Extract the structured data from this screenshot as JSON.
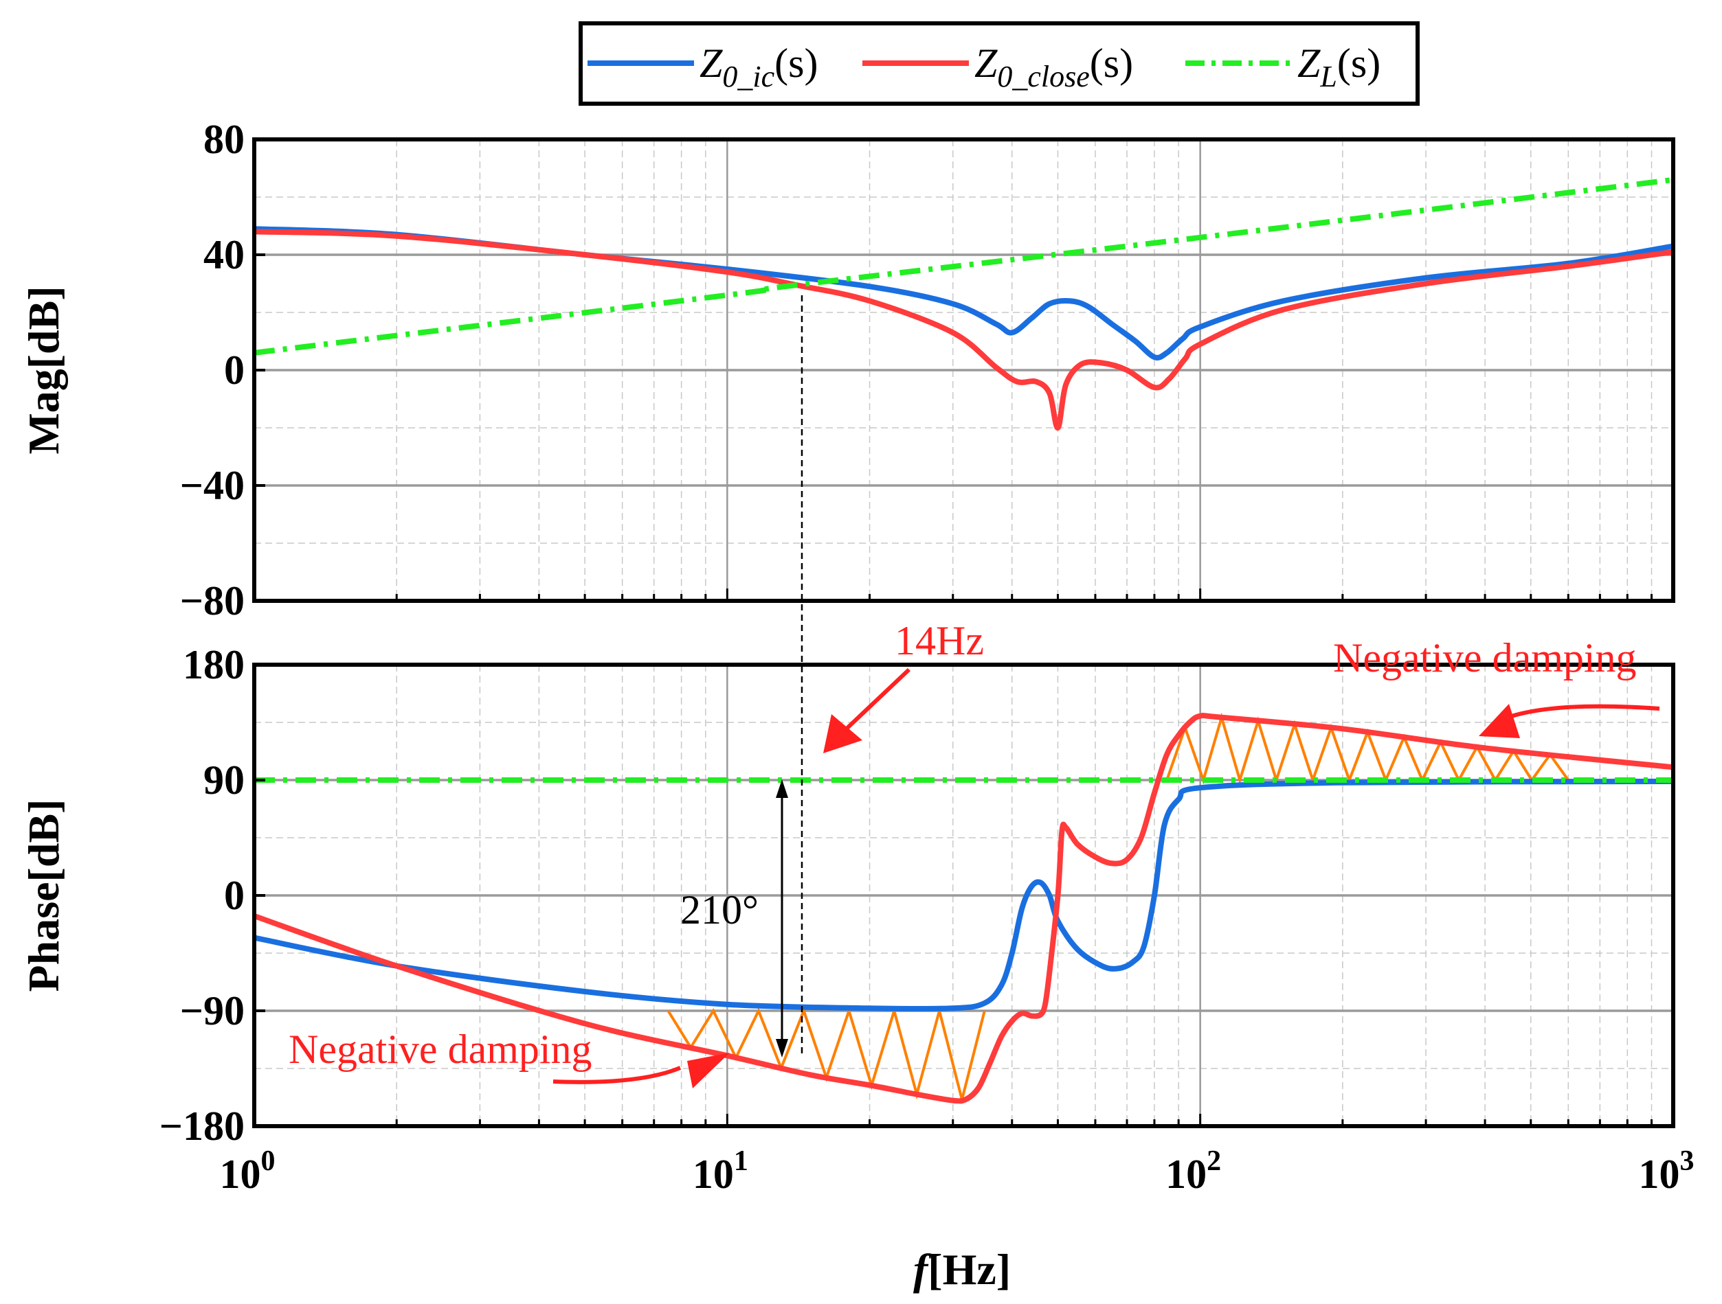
{
  "chart_data": [
    {
      "type": "line",
      "panel": "magnitude",
      "ylabel": "Mag[dB]",
      "xscale": "log",
      "xlim": [
        1,
        1000
      ],
      "ylim": [
        -80,
        80
      ],
      "yticks": [
        80,
        40,
        0,
        -40,
        -80
      ],
      "ytick_labels": [
        "80",
        "40",
        "0",
        "−40",
        "−80"
      ],
      "grid": true,
      "series": [
        {
          "name": "Z0_ic(s)",
          "color": "#1a6fe0",
          "points": [
            [
              1,
              49
            ],
            [
              2,
              47
            ],
            [
              5,
              40
            ],
            [
              10,
              35
            ],
            [
              20,
              29
            ],
            [
              30,
              23
            ],
            [
              37,
              16
            ],
            [
              40,
              13
            ],
            [
              44,
              18
            ],
            [
              48,
              23
            ],
            [
              53,
              24
            ],
            [
              58,
              22
            ],
            [
              65,
              16
            ],
            [
              73,
              10
            ],
            [
              80,
              4.5
            ],
            [
              85,
              6
            ],
            [
              92,
              11
            ],
            [
              100,
              15
            ],
            [
              150,
              24
            ],
            [
              300,
              32
            ],
            [
              600,
              37
            ],
            [
              1000,
              43
            ]
          ]
        },
        {
          "name": "Z0_close(s)",
          "color": "#ff3b3b",
          "points": [
            [
              1,
              48
            ],
            [
              2,
              46.5
            ],
            [
              5,
              40
            ],
            [
              10,
              34
            ],
            [
              14,
              29.5
            ],
            [
              20,
              24
            ],
            [
              30,
              13
            ],
            [
              37,
              1
            ],
            [
              41,
              -4
            ],
            [
              45,
              -4
            ],
            [
              48,
              -8
            ],
            [
              50,
              -20
            ],
            [
              52,
              -5
            ],
            [
              56,
              2
            ],
            [
              62,
              2.5
            ],
            [
              70,
              0
            ],
            [
              80,
              -6
            ],
            [
              86,
              -3
            ],
            [
              93,
              4
            ],
            [
              100,
              9
            ],
            [
              150,
              21
            ],
            [
              300,
              30
            ],
            [
              600,
              36
            ],
            [
              1000,
              41
            ]
          ]
        },
        {
          "name": "ZL(s)",
          "color": "#22ee22",
          "dash": "dashdot",
          "points": [
            [
              1,
              6
            ],
            [
              10,
              26
            ],
            [
              14,
              29.5
            ],
            [
              100,
              46
            ],
            [
              1000,
              66
            ]
          ]
        }
      ]
    },
    {
      "type": "line",
      "panel": "phase",
      "ylabel": "Phase[dB]",
      "xlabel": "f[Hz]",
      "xscale": "log",
      "xlim": [
        1,
        1000
      ],
      "ylim": [
        -180,
        180
      ],
      "yticks": [
        180,
        90,
        0,
        -90,
        -180
      ],
      "ytick_labels": [
        "180",
        "90",
        "0",
        "−90",
        "−180"
      ],
      "grid": true,
      "series": [
        {
          "name": "Z0_ic(s)",
          "color": "#1a6fe0",
          "points": [
            [
              1,
              -33
            ],
            [
              2,
              -55
            ],
            [
              5,
              -75
            ],
            [
              10,
              -85
            ],
            [
              20,
              -88
            ],
            [
              30,
              -88
            ],
            [
              35,
              -84
            ],
            [
              38,
              -70
            ],
            [
              40,
              -45
            ],
            [
              42,
              -10
            ],
            [
              44,
              7
            ],
            [
              46,
              10
            ],
            [
              48,
              0
            ],
            [
              50,
              -20
            ],
            [
              55,
              -42
            ],
            [
              62,
              -55
            ],
            [
              67,
              -57
            ],
            [
              72,
              -52
            ],
            [
              76,
              -40
            ],
            [
              80,
              0
            ],
            [
              84,
              55
            ],
            [
              90,
              75
            ],
            [
              100,
              84
            ],
            [
              200,
              88
            ],
            [
              1000,
              89
            ]
          ]
        },
        {
          "name": "Z0_close(s)",
          "color": "#ff3b3b",
          "points": [
            [
              1,
              -16
            ],
            [
              2,
              -55
            ],
            [
              5,
              -100
            ],
            [
              10,
              -125
            ],
            [
              15,
              -140
            ],
            [
              20,
              -148
            ],
            [
              25,
              -155
            ],
            [
              30,
              -160
            ],
            [
              32,
              -159
            ],
            [
              34,
              -150
            ],
            [
              36,
              -130
            ],
            [
              38,
              -110
            ],
            [
              40,
              -98
            ],
            [
              42,
              -92
            ],
            [
              44,
              -94
            ],
            [
              46,
              -93
            ],
            [
              47,
              -85
            ],
            [
              48,
              -60
            ],
            [
              50,
              0
            ],
            [
              51,
              50
            ],
            [
              52,
              53
            ],
            [
              55,
              40
            ],
            [
              60,
              30
            ],
            [
              65,
              25
            ],
            [
              70,
              28
            ],
            [
              75,
              45
            ],
            [
              80,
              80
            ],
            [
              85,
              110
            ],
            [
              90,
              125
            ],
            [
              95,
              135
            ],
            [
              100,
              140
            ],
            [
              110,
              139
            ],
            [
              200,
              130
            ],
            [
              400,
              115
            ],
            [
              1000,
              100
            ]
          ]
        },
        {
          "name": "ZL(s)",
          "color": "#22ee22",
          "dash": "dashdot",
          "points": [
            [
              1,
              90
            ],
            [
              1000,
              90
            ]
          ]
        }
      ],
      "shaded_regions": [
        {
          "label": "Negative damping",
          "x_range": [
            7.5,
            35
          ],
          "bound": "Z0_close below -90",
          "color": "#ff8000"
        },
        {
          "label": "Negative damping",
          "x_range": [
            85,
            600
          ],
          "bound": "Z0_close above 90",
          "color": "#ff8000"
        }
      ],
      "annotations": [
        {
          "text": "14Hz",
          "x": 14
        },
        {
          "text": "210°",
          "x": 13,
          "from": 90,
          "to": -120
        },
        {
          "text": "Negative damping",
          "panel_position": "upper-right"
        },
        {
          "text": "Negative damping",
          "panel_position": "lower-left"
        }
      ]
    }
  ],
  "legend": {
    "entries": [
      {
        "base": "Z",
        "sub": "0_ic",
        "tail": "(s)"
      },
      {
        "base": "Z",
        "sub": "0_close",
        "tail": "(s)"
      },
      {
        "base": "Z",
        "sub": "L",
        "tail": "(s)"
      }
    ]
  },
  "xticks": [
    {
      "base": "10",
      "exp": "0"
    },
    {
      "base": "10",
      "exp": "1"
    },
    {
      "base": "10",
      "exp": "2"
    },
    {
      "base": "10",
      "exp": "3"
    }
  ],
  "labels": {
    "mag_ylabel": "Mag[dB]",
    "phase_ylabel": "Phase[dB]",
    "xlabel_f": "f",
    "xlabel_unit": "[Hz]",
    "ann_14hz": "14Hz",
    "ann_210": "210°",
    "ann_neg_top": "Negative damping",
    "ann_neg_bottom": "Negative damping"
  }
}
